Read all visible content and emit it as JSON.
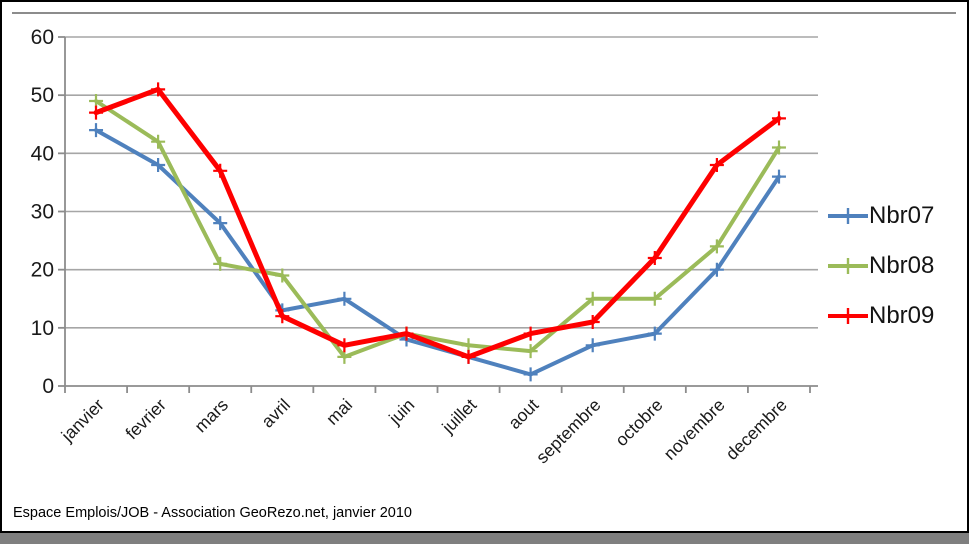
{
  "page": {
    "caption": "Espace Emplois/JOB - Association GeoRezo.net, janvier 2010"
  },
  "colors": {
    "series_blue": "#4F81BD",
    "series_green": "#9BBB59",
    "series_red": "#FE0000",
    "gridline": "#A6A6A6",
    "axis": "#8c8c8c",
    "tick_text": "#1a1a1a",
    "frame_gray": "#7f7f7f"
  },
  "chart_data": {
    "type": "line",
    "title": "",
    "xlabel": "",
    "ylabel": "",
    "categories": [
      "janvier",
      "fevrier",
      "mars",
      "avril",
      "mai",
      "juin",
      "juillet",
      "aout",
      "septembre",
      "octobre",
      "novembre",
      "decembre"
    ],
    "series": [
      {
        "name": "Nbr07",
        "color": "#4F81BD",
        "values": [
          44,
          38,
          28,
          13,
          15,
          8,
          5,
          2,
          7,
          9,
          20,
          36
        ]
      },
      {
        "name": "Nbr08",
        "color": "#9BBB59",
        "values": [
          49,
          42,
          21,
          19,
          5,
          9,
          7,
          6,
          15,
          15,
          24,
          41
        ]
      },
      {
        "name": "Nbr09",
        "color": "#FE0000",
        "values": [
          47,
          51,
          37,
          12,
          7,
          9,
          5,
          9,
          11,
          22,
          38,
          46
        ]
      }
    ],
    "ylim": [
      0,
      60
    ],
    "yticks": [
      0,
      10,
      20,
      30,
      40,
      50,
      60
    ],
    "grid": true,
    "legend_position": "right",
    "marker": "plus"
  }
}
